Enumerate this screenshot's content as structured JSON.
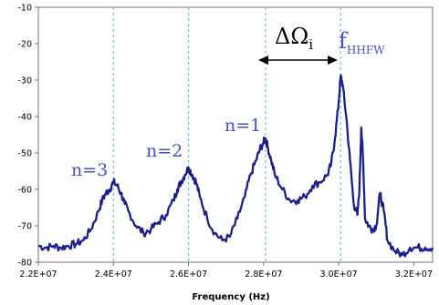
{
  "chart_data": {
    "type": "line",
    "title": "",
    "xlabel": "Frequency (Hz)",
    "ylabel": "",
    "xlim": [
      22000000,
      32500000
    ],
    "ylim": [
      -80,
      -10
    ],
    "xticks": [
      22000000,
      24000000,
      26000000,
      28000000,
      30000000,
      32000000
    ],
    "xtick_labels": [
      "2.2E+07",
      "2.4E+07",
      "2.6E+07",
      "2.8E+07",
      "3.0E+07",
      "3.2E+07"
    ],
    "yticks": [
      -10,
      -20,
      -30,
      -40,
      -50,
      -60,
      -70,
      -80
    ],
    "ytick_labels": [
      "-10",
      "-20",
      "-30",
      "-40",
      "-50",
      "-60",
      "-70",
      "-80"
    ],
    "grid": "vertical dashed at harmonic peaks",
    "guide_lines_x": [
      24000000,
      26000000,
      28050000,
      30050000
    ],
    "series": [
      {
        "color": "#1a1f8c",
        "x": [
          22000000,
          22200000,
          22400000,
          22600000,
          22800000,
          23000000,
          23200000,
          23400000,
          23600000,
          23700000,
          23800000,
          23900000,
          24000000,
          24100000,
          24200000,
          24300000,
          24400000,
          24600000,
          24800000,
          25000000,
          25200000,
          25400000,
          25600000,
          25700000,
          25800000,
          25900000,
          26000000,
          26100000,
          26200000,
          26300000,
          26500000,
          26700000,
          26900000,
          27100000,
          27300000,
          27500000,
          27650000,
          27800000,
          27900000,
          28000000,
          28050000,
          28100000,
          28200000,
          28300000,
          28500000,
          28700000,
          28900000,
          29100000,
          29300000,
          29500000,
          29700000,
          29800000,
          29900000,
          30000000,
          30050000,
          30100000,
          30200000,
          30300000,
          30400000,
          30500000,
          30550000,
          30600000,
          30650000,
          30700000,
          30800000,
          30900000,
          31000000,
          31100000,
          31200000,
          31300000,
          31500000,
          31700000,
          31900000,
          32100000,
          32300000,
          32500000
        ],
        "y": [
          -75.5,
          -76,
          -75.5,
          -76,
          -75.5,
          -75,
          -74,
          -71,
          -66,
          -63,
          -61,
          -60,
          -58,
          -59,
          -61,
          -64,
          -66,
          -70,
          -72,
          -71,
          -69,
          -67,
          -63,
          -60,
          -58,
          -56,
          -54,
          -56,
          -58,
          -62,
          -68,
          -72,
          -74,
          -73,
          -68,
          -62,
          -56,
          -52,
          -49,
          -47,
          -46,
          -48,
          -52,
          -56,
          -60,
          -63,
          -63,
          -62,
          -59,
          -58,
          -56,
          -53,
          -46,
          -36,
          -29,
          -31,
          -40,
          -52,
          -64,
          -67,
          -60,
          -43,
          -52,
          -68,
          -70,
          -71,
          -70,
          -61,
          -66,
          -74,
          -77,
          -78,
          -76,
          -76,
          -76,
          -76
        ]
      }
    ],
    "annotations": {
      "n3": "n=3",
      "n2": "n=2",
      "n1": "n=1",
      "delta_main": "ΔΩ",
      "delta_sub": "i",
      "f_main": "f",
      "f_sub": "HHFW"
    }
  }
}
